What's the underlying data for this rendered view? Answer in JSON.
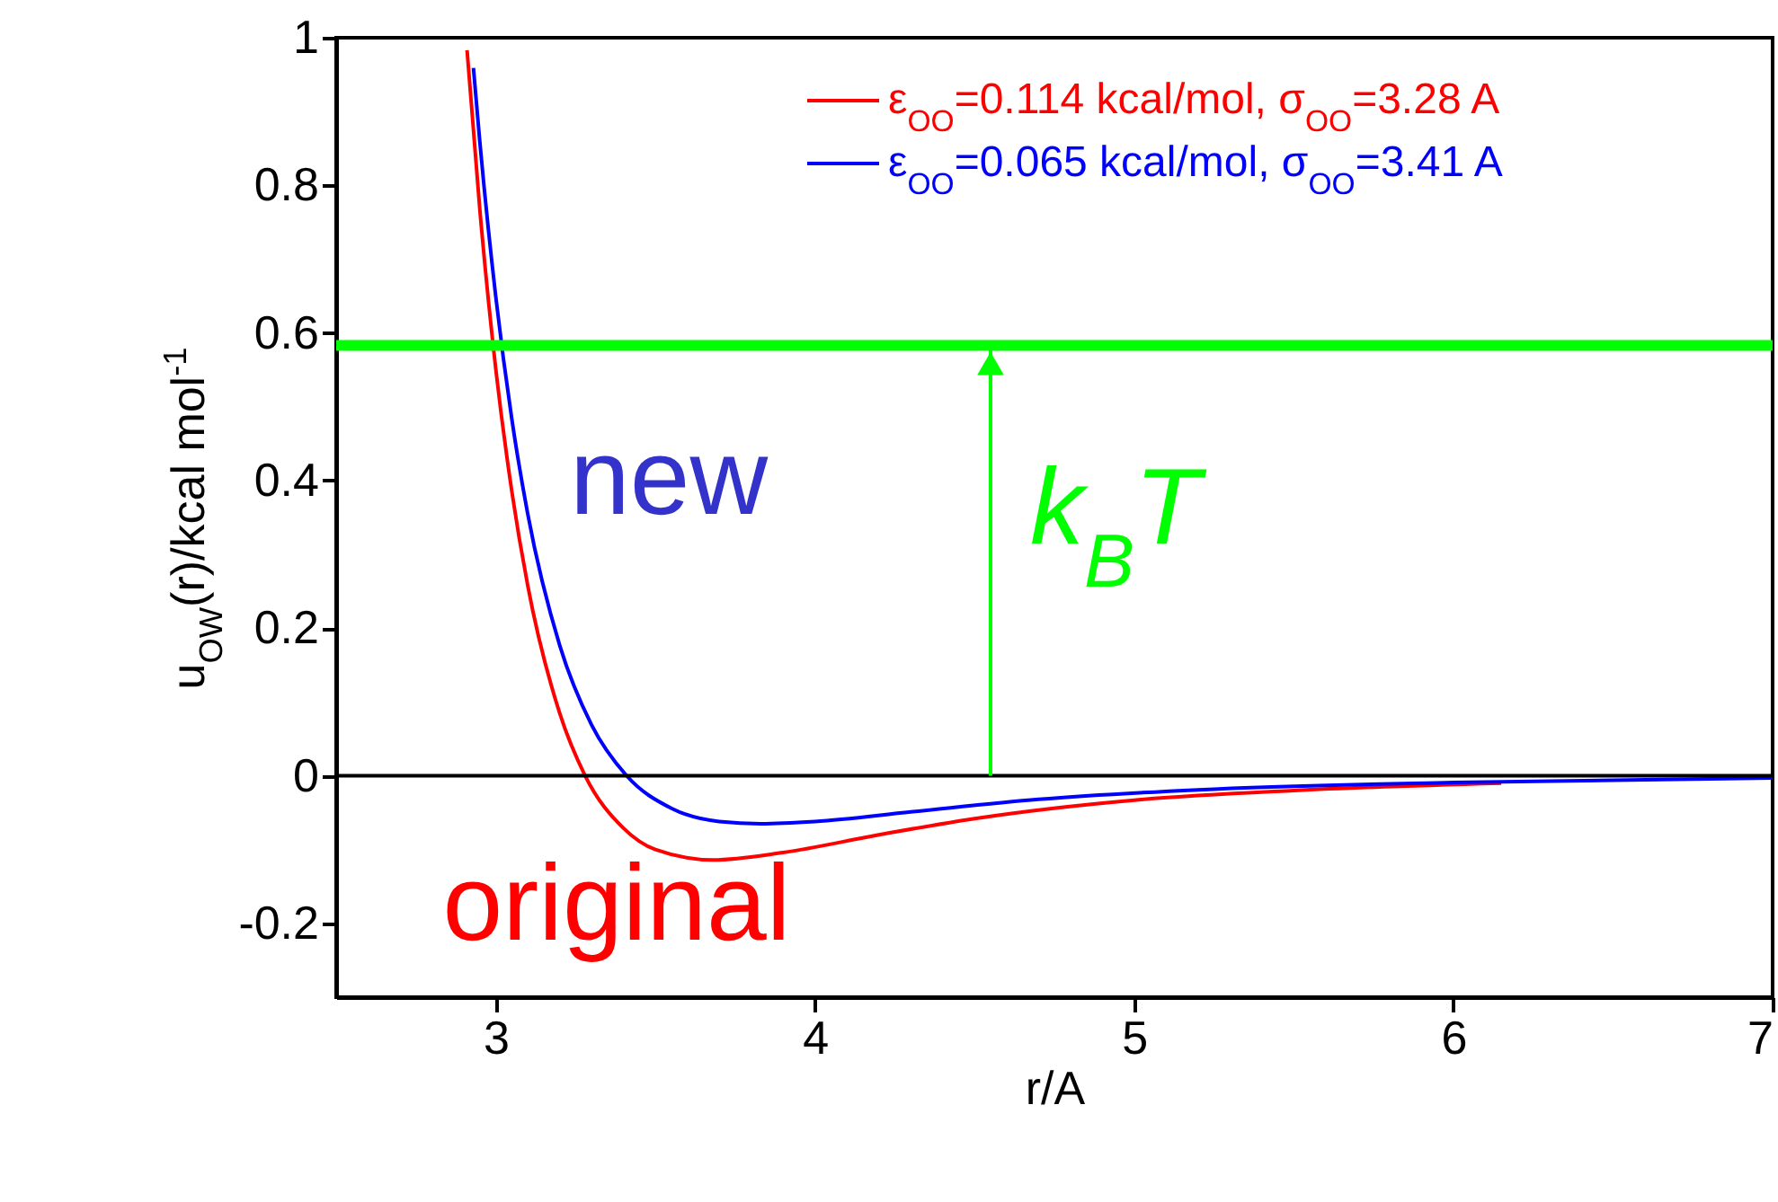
{
  "chart_data": {
    "type": "line",
    "xlabel": "r/A",
    "ylabel": "u$_{OW}$(r)/kcal mol$^{-1}$",
    "xlim": [
      2.5,
      7
    ],
    "xticks": [
      3,
      4,
      5,
      6,
      7
    ],
    "ylim": [
      -0.3,
      1
    ],
    "yticks": [
      -0.2,
      0,
      0.2,
      0.4,
      0.6,
      0.8,
      1
    ],
    "legend": "top right",
    "marker": "none",
    "series": [
      {
        "name": "ε$_{OO}$=0.114 kcal/mol, σ$_{OO}$=3.28 A",
        "color": "#ff0000",
        "x": [
          2.91,
          2.95,
          3.0,
          3.05,
          3.1,
          3.2,
          3.28,
          3.4,
          3.5,
          3.68,
          3.9,
          4.2,
          4.5,
          5.0,
          5.5,
          6.15
        ],
        "values": [
          0.983,
          0.767,
          0.551,
          0.386,
          0.258,
          0.085,
          0,
          -0.071,
          -0.1,
          -0.114,
          -0.104,
          -0.08,
          -0.058,
          -0.033,
          -0.02,
          -0.01
        ]
      },
      {
        "name": "ε$_{OO}$=0.065 kcal/mol, σ$_{OO}$=3.41 A",
        "color": "#0000ff",
        "x": [
          2.93,
          2.95,
          3.0,
          3.05,
          3.1,
          3.2,
          3.3,
          3.41,
          3.55,
          3.7,
          3.83,
          4.0,
          4.3,
          4.7,
          5.2,
          6.0,
          7.0
        ],
        "values": [
          0.959,
          0.859,
          0.649,
          0.484,
          0.355,
          0.177,
          0.069,
          0,
          -0.044,
          -0.062,
          -0.065,
          -0.062,
          -0.049,
          -0.032,
          -0.019,
          -0.009,
          -0.003
        ]
      }
    ],
    "ref_lines": [
      {
        "axis": "y",
        "value": 0.583,
        "color": "#00ff00"
      },
      {
        "axis": "y",
        "value": 0,
        "color": "#000000"
      }
    ],
    "annotations": [
      "new",
      "original",
      {
        "text": "k$_{B}$T",
        "x": 4.55,
        "y": 0.583
      }
    ]
  }
}
